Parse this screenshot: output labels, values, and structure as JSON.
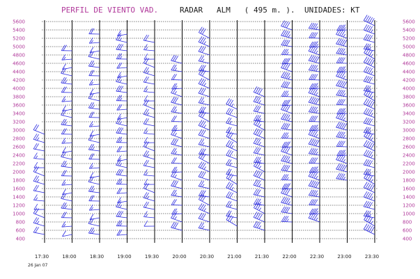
{
  "header": {
    "title": "PERFIL DE VIENTO VAD.",
    "radar": "RADAR   ALM   ( 495 m. ).",
    "units": "UNIDADES: KT"
  },
  "date_stamp": "26 Jan 07",
  "colors": {
    "title": "#b0389a",
    "axis_labels": "#b0389a",
    "barbs": "#2a2ae0",
    "grid": "#000000"
  },
  "chart_data": {
    "type": "wind_profile",
    "title": "PERFIL DE VIENTO VAD.",
    "radar": "ALM",
    "radar_altitude": "495 m.",
    "units": "KT",
    "date": "26 Jan 07",
    "y_ticks": [
      400,
      600,
      800,
      1000,
      1200,
      1400,
      1600,
      1800,
      2000,
      2200,
      2400,
      2600,
      2800,
      3000,
      3200,
      3400,
      3600,
      3800,
      4000,
      4200,
      4400,
      4600,
      4800,
      5000,
      5200,
      5400,
      5600
    ],
    "y_tick_labels_left": [
      "400",
      "600",
      "800",
      "1000",
      "1200",
      "1400",
      "1600",
      "1800",
      "2000",
      "2200",
      "2400",
      "2600",
      "2800",
      "3000",
      "3200",
      "3400",
      "3600",
      "3800",
      "4000",
      "4200",
      "4400",
      "4600",
      "4800",
      "5000",
      "5200",
      "5400",
      "5600"
    ],
    "y_tick_labels_right": [
      "400",
      "600",
      "800",
      "1000",
      "1200",
      "1400",
      "1600",
      "1800",
      "2000",
      "2200",
      "2400",
      "2600",
      "2800",
      "3000",
      "3200",
      "3400",
      "3600",
      "3800",
      "4000",
      "4200",
      "4400",
      "4600",
      "4800",
      "5000",
      "5200",
      "5400",
      "5600"
    ],
    "ylim": [
      400,
      5600
    ],
    "x_labels": [
      "17:30",
      "18:00",
      "18:30",
      "19:00",
      "19:30",
      "20:00",
      "20:30",
      "21:00",
      "21:30",
      "22:00",
      "22:30",
      "23:00",
      "23:30"
    ],
    "grid": true,
    "profiles": [
      {
        "time": "17:30",
        "min_height": 500,
        "max_height": 3000,
        "dir": 260,
        "speed": 20
      },
      {
        "time": "18:00",
        "min_height": 500,
        "max_height": 5000,
        "dir": 250,
        "speed": 20
      },
      {
        "time": "18:30",
        "min_height": 500,
        "max_height": 5400,
        "dir": 250,
        "speed": 20
      },
      {
        "time": "19:00",
        "min_height": 500,
        "max_height": 5400,
        "dir": 250,
        "speed": 25
      },
      {
        "time": "19:30",
        "min_height": 700,
        "max_height": 5200,
        "dir": 260,
        "speed": 20
      },
      {
        "time": "20:00",
        "min_height": 600,
        "max_height": 4700,
        "dir": 260,
        "speed": 25
      },
      {
        "time": "20:30",
        "min_height": 600,
        "max_height": 5200,
        "dir": 270,
        "speed": 30
      },
      {
        "time": "21:00",
        "min_height": 700,
        "max_height": 3600,
        "dir": 270,
        "speed": 30
      },
      {
        "time": "21:30",
        "min_height": 600,
        "max_height": 3900,
        "dir": 270,
        "speed": 35
      },
      {
        "time": "22:00",
        "min_height": 800,
        "max_height": 5500,
        "dir": 260,
        "speed": 40
      },
      {
        "time": "22:30",
        "min_height": 800,
        "max_height": 5500,
        "dir": 260,
        "speed": 45
      },
      {
        "time": "23:00",
        "min_height": 1800,
        "max_height": 5500,
        "dir": 260,
        "speed": 45
      },
      {
        "time": "23:30",
        "min_height": 500,
        "max_height": 5500,
        "dir": 270,
        "speed": 45
      }
    ]
  }
}
